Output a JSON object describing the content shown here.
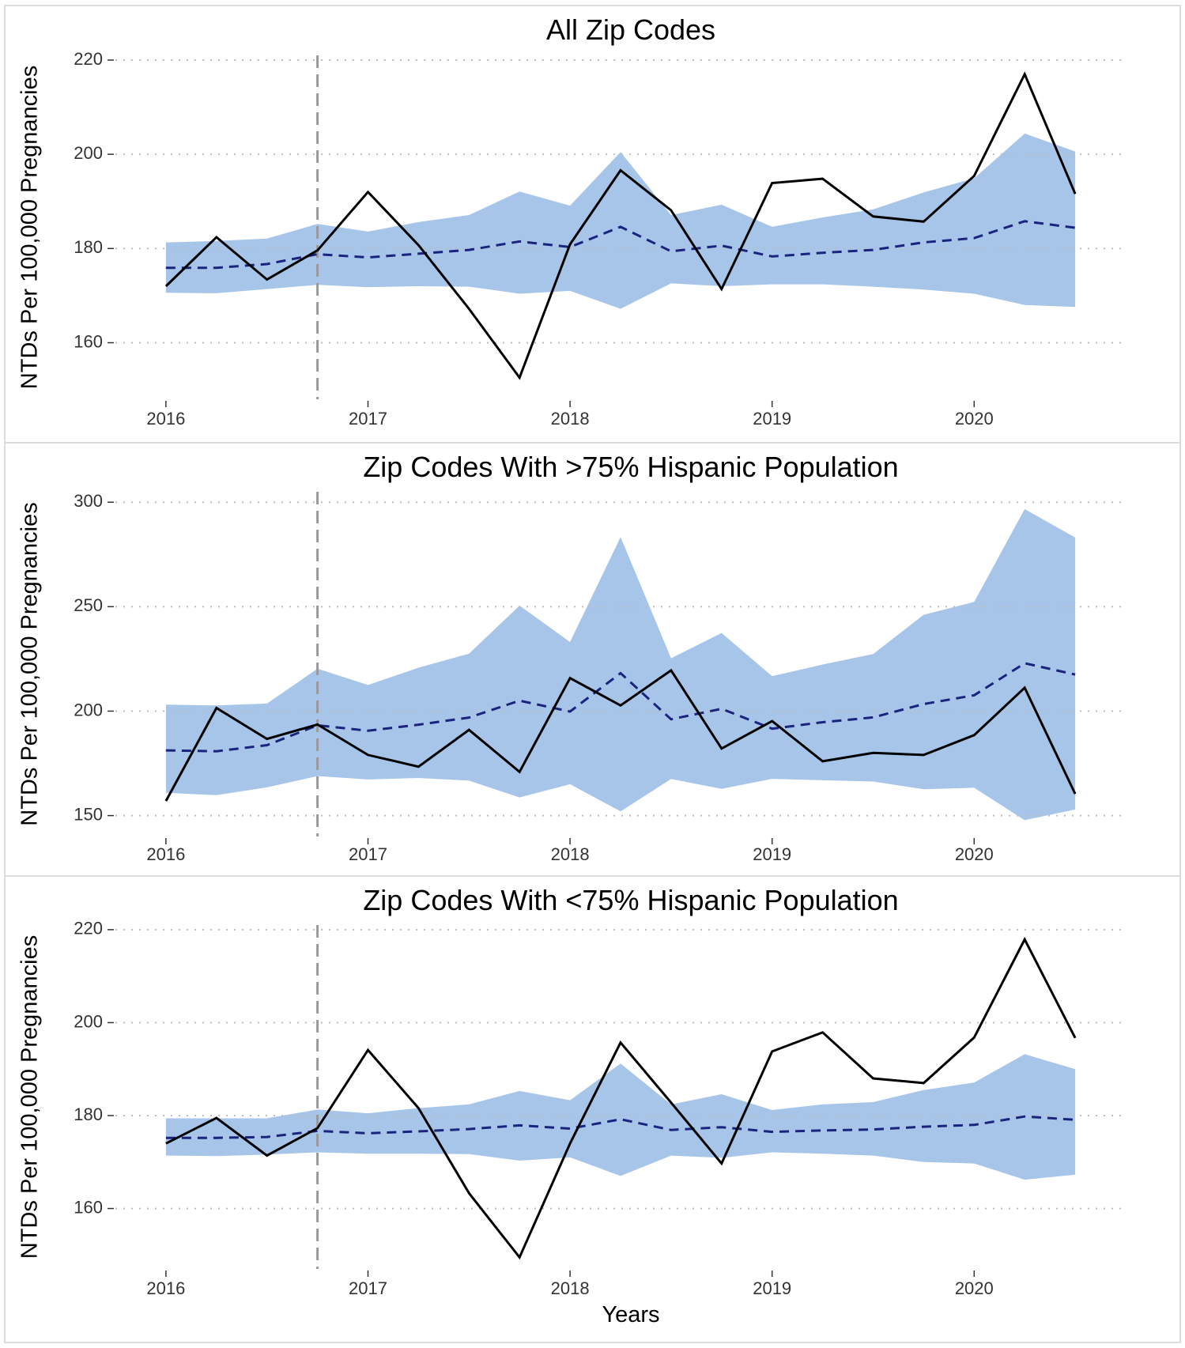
{
  "figure": {
    "xlabel": "Years",
    "xticks": [
      "2016",
      "2017",
      "2018",
      "2019",
      "2020"
    ],
    "colors": {
      "band": "#a7c5e9",
      "forecast": "#1a237e",
      "observed": "#000000",
      "vline": "#999999",
      "grid": "#bdbdbd",
      "panel_border": "#dcdcdc",
      "axis_text": "#333333",
      "title_text": "#000000"
    }
  },
  "chart_data": [
    {
      "type": "line",
      "title": "All Zip Codes",
      "xlabel": "",
      "ylabel": "NTDs Per 100,000 Pregnancies",
      "xlim": [
        2015.75,
        2020.75
      ],
      "ylim": [
        148,
        221
      ],
      "yticks": [
        220,
        200,
        180,
        160
      ],
      "vline": 2016.75,
      "x": [
        2016.0,
        2016.25,
        2016.5,
        2016.75,
        2017.0,
        2017.25,
        2017.5,
        2017.75,
        2018.0,
        2018.25,
        2018.5,
        2018.75,
        2019.0,
        2019.25,
        2019.5,
        2019.75,
        2020.0,
        2020.25,
        2020.5
      ],
      "series": [
        {
          "role": "upper",
          "values": [
            181.3,
            181.6,
            182.1,
            185.2,
            183.6,
            185.6,
            187.1,
            192.1,
            189.1,
            200.5,
            187.1,
            189.3,
            184.6,
            186.6,
            188.3,
            191.9,
            194.9,
            204.4,
            200.6
          ]
        },
        {
          "role": "lower",
          "values": [
            170.6,
            170.5,
            171.4,
            172.3,
            171.8,
            172.0,
            171.9,
            170.4,
            171.0,
            167.2,
            172.6,
            172.0,
            172.4,
            172.4,
            171.9,
            171.3,
            170.4,
            168.0,
            167.6
          ]
        },
        {
          "role": "expected",
          "values": [
            175.9,
            175.9,
            176.7,
            178.8,
            178.1,
            178.9,
            179.7,
            181.5,
            180.3,
            184.6,
            179.4,
            180.6,
            178.3,
            179.1,
            179.7,
            181.3,
            182.2,
            185.8,
            184.4
          ]
        },
        {
          "role": "observed",
          "values": [
            172.0,
            182.4,
            173.4,
            179.6,
            192.0,
            180.7,
            167.2,
            152.6,
            180.9,
            196.6,
            188.1,
            171.4,
            193.9,
            194.8,
            186.8,
            185.7,
            195.4,
            217.0,
            191.6
          ]
        }
      ]
    },
    {
      "type": "line",
      "title": "Zip Codes With >75% Hispanic Population",
      "xlabel": "",
      "ylabel": "NTDs Per 100,000 Pregnancies",
      "xlim": [
        2015.75,
        2020.75
      ],
      "ylim": [
        140,
        305
      ],
      "yticks": [
        300,
        250,
        200,
        150
      ],
      "vline": 2016.75,
      "x": [
        2016.0,
        2016.25,
        2016.5,
        2016.75,
        2017.0,
        2017.25,
        2017.5,
        2017.75,
        2018.0,
        2018.25,
        2018.5,
        2018.75,
        2019.0,
        2019.25,
        2019.5,
        2019.75,
        2020.0,
        2020.25,
        2020.5
      ],
      "series": [
        {
          "role": "upper",
          "values": [
            203.1,
            202.7,
            203.6,
            220.3,
            212.5,
            220.8,
            227.5,
            250.5,
            233.1,
            283.3,
            225.3,
            237.4,
            216.7,
            222.3,
            227.3,
            246.1,
            252.3,
            296.7,
            283.1
          ]
        },
        {
          "role": "lower",
          "values": [
            160.9,
            159.8,
            163.5,
            168.9,
            167.3,
            168.0,
            166.7,
            158.7,
            165.0,
            152.0,
            167.5,
            162.8,
            167.6,
            166.9,
            166.3,
            162.6,
            163.3,
            147.8,
            152.9
          ]
        },
        {
          "role": "expected",
          "values": [
            181.2,
            180.8,
            183.7,
            193.2,
            190.6,
            193.5,
            196.9,
            205.0,
            199.8,
            218.2,
            196.1,
            201.1,
            191.6,
            194.7,
            197.0,
            203.4,
            207.6,
            222.9,
            217.5
          ]
        },
        {
          "role": "observed",
          "values": [
            157.0,
            201.5,
            186.7,
            193.6,
            179.0,
            173.4,
            191.0,
            170.9,
            215.8,
            202.7,
            219.5,
            182.1,
            195.2,
            176.0,
            180.0,
            179.0,
            188.5,
            211.2,
            160.4
          ]
        }
      ]
    },
    {
      "type": "line",
      "title": "Zip Codes With <75% Hispanic Population",
      "xlabel": "Years",
      "ylabel": "NTDs Per 100,000 Pregnancies",
      "xlim": [
        2015.75,
        2020.75
      ],
      "ylim": [
        147,
        221
      ],
      "yticks": [
        220,
        200,
        180,
        160
      ],
      "vline": 2016.75,
      "x": [
        2016.0,
        2016.25,
        2016.5,
        2016.75,
        2017.0,
        2017.25,
        2017.5,
        2017.75,
        2018.0,
        2018.25,
        2018.5,
        2018.75,
        2019.0,
        2019.25,
        2019.5,
        2019.75,
        2020.0,
        2020.25,
        2020.5
      ],
      "series": [
        {
          "role": "upper",
          "values": [
            179.4,
            179.4,
            179.4,
            181.3,
            180.5,
            181.6,
            182.4,
            185.3,
            183.3,
            191.2,
            182.4,
            184.6,
            181.2,
            182.4,
            182.9,
            185.5,
            187.1,
            193.2,
            190.0
          ]
        },
        {
          "role": "lower",
          "values": [
            171.4,
            171.3,
            171.6,
            172.1,
            171.8,
            171.8,
            171.7,
            170.3,
            171.0,
            167.0,
            171.4,
            170.9,
            172.1,
            171.8,
            171.4,
            170.0,
            169.7,
            166.2,
            167.3
          ]
        },
        {
          "role": "expected",
          "values": [
            175.2,
            175.2,
            175.4,
            176.7,
            176.2,
            176.6,
            177.1,
            177.9,
            177.2,
            179.2,
            176.9,
            177.5,
            176.5,
            176.8,
            177.0,
            177.6,
            178.0,
            179.8,
            179.1
          ]
        },
        {
          "role": "observed",
          "values": [
            174.0,
            179.5,
            171.4,
            177.3,
            194.1,
            181.6,
            163.3,
            149.5,
            174.0,
            195.7,
            182.8,
            169.7,
            193.8,
            197.9,
            188.0,
            187.0,
            196.8,
            217.9,
            196.7
          ]
        }
      ]
    }
  ]
}
